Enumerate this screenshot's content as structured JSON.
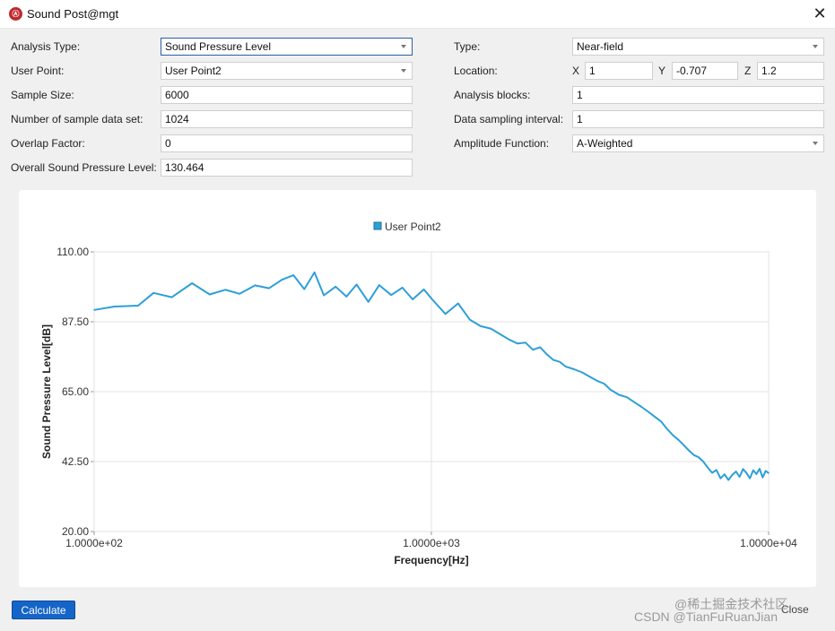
{
  "window": {
    "title": "Sound Post@mgt",
    "icon": "app-logo-icon",
    "close_icon": "close-icon"
  },
  "form": {
    "analysis_type": {
      "label": "Analysis Type:",
      "value": "Sound Pressure Level"
    },
    "user_point": {
      "label": "User Point:",
      "value": "User Point2"
    },
    "sample_size": {
      "label": "Sample Size:",
      "value": "6000"
    },
    "num_sample_data_set": {
      "label": "Number of sample data set:",
      "value": "1024"
    },
    "overlap_factor": {
      "label": "Overlap Factor:",
      "value": "0"
    },
    "overall_spl": {
      "label": "Overall Sound Pressure Level:",
      "value": "130.464"
    },
    "type": {
      "label": "Type:",
      "value": "Near-field"
    },
    "location": {
      "label": "Location:",
      "x_label": "X",
      "x": "1",
      "y_label": "Y",
      "y": "-0.707",
      "z_label": "Z",
      "z": "1.2"
    },
    "analysis_blocks": {
      "label": "Analysis blocks:",
      "value": "1"
    },
    "data_sampling_interval": {
      "label": "Data sampling interval:",
      "value": "1"
    },
    "amplitude_function": {
      "label": "Amplitude Function:",
      "value": "A-Weighted"
    }
  },
  "buttons": {
    "calculate": "Calculate",
    "close": "Close"
  },
  "watermark": {
    "line1": "@稀土掘金技术社区",
    "line2": "CSDN @TianFuRuanJian"
  },
  "chart_data": {
    "type": "line",
    "xlabel": "Frequency[Hz]",
    "ylabel": "Sound Pressure Level[dB]",
    "xscale": "log",
    "xlim": [
      100,
      10000
    ],
    "ylim": [
      20,
      110
    ],
    "xticks": [
      "1.0000e+02",
      "1.0000e+03",
      "1.0000e+04"
    ],
    "yticks": [
      "110.00",
      "87.50",
      "65.00",
      "42.50",
      "20.00"
    ],
    "grid": true,
    "legend": "top-center",
    "color": "#2e9fd8",
    "series": [
      {
        "name": "User Point2",
        "x": [
          100,
          115,
          135,
          150,
          170,
          195,
          220,
          245,
          270,
          300,
          330,
          360,
          390,
          420,
          450,
          480,
          520,
          560,
          600,
          650,
          700,
          760,
          820,
          880,
          950,
          1000,
          1100,
          1200,
          1300,
          1400,
          1500,
          1600,
          1700,
          1800,
          1900,
          2000,
          2100,
          2200,
          2300,
          2400,
          2500,
          2650,
          2800,
          2950,
          3100,
          3250,
          3400,
          3600,
          3800,
          4000,
          4200,
          4400,
          4600,
          4800,
          5000,
          5200,
          5400,
          5600,
          5800,
          6000,
          6200,
          6400,
          6600,
          6800,
          7000,
          7200,
          7400,
          7600,
          7800,
          8000,
          8200,
          8400,
          8600,
          8800,
          9000,
          9200,
          9400,
          9600,
          9800,
          10000
        ],
        "values": [
          91.3,
          92.4,
          92.7,
          96.8,
          95.4,
          99.9,
          96.3,
          97.8,
          96.5,
          99.2,
          98.3,
          101.0,
          102.5,
          98.0,
          103.4,
          96.0,
          98.8,
          95.6,
          99.5,
          93.9,
          99.3,
          96.1,
          98.5,
          94.7,
          97.9,
          95.0,
          90.0,
          93.4,
          88.2,
          86.1,
          85.3,
          83.5,
          81.8,
          80.5,
          80.8,
          78.5,
          79.3,
          77.0,
          75.2,
          74.6,
          73.1,
          72.2,
          71.2,
          69.8,
          68.5,
          67.6,
          65.6,
          64.0,
          63.2,
          61.6,
          60.1,
          58.5,
          56.9,
          55.4,
          53.0,
          51.0,
          49.5,
          47.8,
          46.1,
          44.6,
          43.9,
          42.5,
          40.6,
          38.9,
          39.8,
          37.1,
          38.4,
          36.6,
          38.2,
          39.3,
          37.6,
          40.1,
          38.8,
          37.1,
          39.7,
          38.5,
          40.2,
          37.4,
          39.5,
          38.8
        ]
      }
    ]
  }
}
